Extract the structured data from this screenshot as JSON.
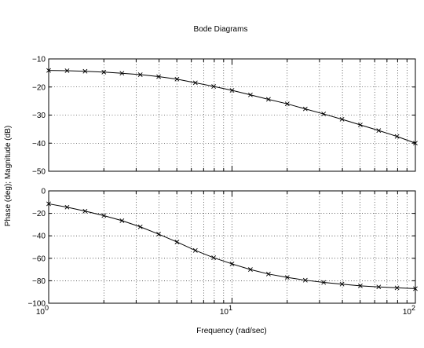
{
  "chart_data": {
    "type": "line",
    "title": "Bode Diagrams",
    "xlabel": "Frequency (rad/sec)",
    "ylabel": "Phase (deg); Magnitude (dB)",
    "xscale": "log",
    "xlim": [
      1,
      100
    ],
    "x_ticks": [
      {
        "base": "10",
        "exp": "0"
      },
      {
        "base": "10",
        "exp": "1"
      },
      {
        "base": "10",
        "exp": "2"
      }
    ],
    "x": [
      1.0,
      1.26,
      1.58,
      2.0,
      2.51,
      3.16,
      3.98,
      5.01,
      6.31,
      7.94,
      10.0,
      12.6,
      15.8,
      20.0,
      25.1,
      31.6,
      39.8,
      50.1,
      63.1,
      79.4,
      100.0
    ],
    "grid": true,
    "panels": [
      {
        "name": "magnitude",
        "ylim": [
          -50,
          -10
        ],
        "yticks": [
          "−10",
          "−20",
          "−30",
          "−40",
          "−50"
        ],
        "ytick_values": [
          -10,
          -20,
          -30,
          -40,
          -50
        ],
        "values": [
          -14.1,
          -14.2,
          -14.4,
          -14.7,
          -15.1,
          -15.6,
          -16.3,
          -17.2,
          -18.5,
          -19.8,
          -21.2,
          -22.8,
          -24.4,
          -26.0,
          -27.8,
          -29.6,
          -31.5,
          -33.5,
          -35.5,
          -37.6,
          -40.0
        ]
      },
      {
        "name": "phase",
        "ylim": [
          -100,
          0
        ],
        "yticks": [
          "0",
          "−20",
          "−40",
          "−60",
          "−80",
          "−100"
        ],
        "ytick_values": [
          0,
          -20,
          -40,
          -60,
          -80,
          -100
        ],
        "values": [
          -11.5,
          -14.5,
          -18.0,
          -22.0,
          -26.5,
          -32.0,
          -38.5,
          -45.5,
          -53.0,
          -59.5,
          -65.0,
          -70.0,
          -74.0,
          -77.0,
          -79.5,
          -81.5,
          -83.0,
          -84.5,
          -85.5,
          -86.3,
          -87.0
        ]
      }
    ]
  }
}
